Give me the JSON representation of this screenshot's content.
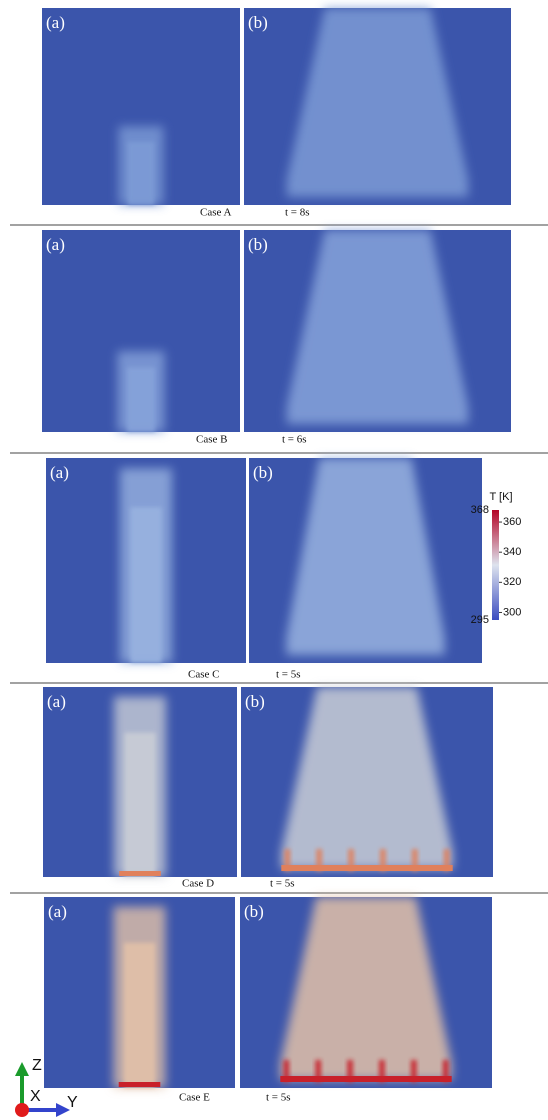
{
  "rows": [
    {
      "label_a": "(a)",
      "label_b": "(b)",
      "case": "Case A",
      "time": "t = 8s"
    },
    {
      "label_a": "(a)",
      "label_b": "(b)",
      "case": "Case B",
      "time": "t = 6s"
    },
    {
      "label_a": "(a)",
      "label_b": "(b)",
      "case": "Case C",
      "time": "t = 5s"
    },
    {
      "label_a": "(a)",
      "label_b": "(b)",
      "case": "Case D",
      "time": "t = 5s"
    },
    {
      "label_a": "(a)",
      "label_b": "(b)",
      "case": "Case E",
      "time": "t = 5s"
    }
  ],
  "colorbar": {
    "title": "T [K]",
    "min": 295,
    "max": 368,
    "ticks": [
      300,
      320,
      340,
      360
    ]
  },
  "axes": {
    "z": "Z",
    "x": "X",
    "y": "Y"
  }
}
